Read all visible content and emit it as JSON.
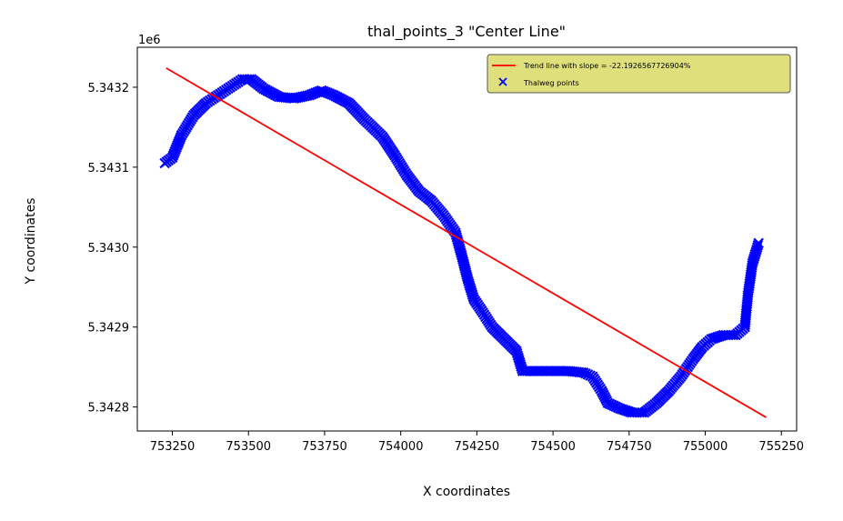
{
  "chart_data": {
    "type": "scatter",
    "title": "thal_points_3 \"Center Line\"",
    "xlabel": "X coordinates",
    "ylabel": "Y coordinates",
    "y_offset_label": "1e6",
    "xlim": [
      753135,
      755300
    ],
    "ylim": [
      5342770,
      5343250
    ],
    "x_ticks": [
      753250,
      753500,
      753750,
      754000,
      754250,
      754500,
      754750,
      755000,
      755250
    ],
    "x_tick_labels": [
      "753250",
      "753500",
      "753750",
      "754000",
      "754250",
      "754500",
      "754750",
      "755000",
      "755250"
    ],
    "y_ticks": [
      5342800,
      5342900,
      5343000,
      5343100,
      5343200
    ],
    "y_tick_labels": [
      "5.3428",
      "5.3429",
      "5.3430",
      "5.3431",
      "5.3432"
    ],
    "grid": false,
    "legend_position": "upper right",
    "legend_bg": "#dfdf7c",
    "series": [
      {
        "name": "Trend line with slope = -22.1926567726904%",
        "kind": "line",
        "color": "#ff0000",
        "points": [
          [
            753230,
            5343224
          ],
          [
            755200,
            5342787
          ]
        ]
      },
      {
        "name": "Thalweg points",
        "kind": "scatter",
        "marker": "x",
        "color": "#0000ff",
        "points": [
          [
            753225,
            5343105
          ],
          [
            753250,
            5343112
          ],
          [
            753280,
            5343140
          ],
          [
            753320,
            5343165
          ],
          [
            753360,
            5343180
          ],
          [
            753400,
            5343190
          ],
          [
            753440,
            5343200
          ],
          [
            753480,
            5343210
          ],
          [
            753510,
            5343210
          ],
          [
            753550,
            5343198
          ],
          [
            753600,
            5343188
          ],
          [
            753650,
            5343186
          ],
          [
            753700,
            5343190
          ],
          [
            753740,
            5343196
          ],
          [
            753780,
            5343190
          ],
          [
            753830,
            5343180
          ],
          [
            753880,
            5343160
          ],
          [
            753940,
            5343138
          ],
          [
            753980,
            5343115
          ],
          [
            754020,
            5343090
          ],
          [
            754060,
            5343070
          ],
          [
            754100,
            5343058
          ],
          [
            754140,
            5343040
          ],
          [
            754180,
            5343018
          ],
          [
            754200,
            5342990
          ],
          [
            754220,
            5342960
          ],
          [
            754240,
            5342935
          ],
          [
            754270,
            5342918
          ],
          [
            754300,
            5342900
          ],
          [
            754340,
            5342885
          ],
          [
            754380,
            5342870
          ],
          [
            754400,
            5342845
          ],
          [
            754450,
            5342845
          ],
          [
            754500,
            5342845
          ],
          [
            754550,
            5342845
          ],
          [
            754600,
            5342843
          ],
          [
            754630,
            5342838
          ],
          [
            754660,
            5342820
          ],
          [
            754680,
            5342805
          ],
          [
            754720,
            5342798
          ],
          [
            754760,
            5342793
          ],
          [
            754800,
            5342793
          ],
          [
            754840,
            5342805
          ],
          [
            754880,
            5342820
          ],
          [
            754920,
            5342838
          ],
          [
            754960,
            5342860
          ],
          [
            754990,
            5342875
          ],
          [
            755020,
            5342885
          ],
          [
            755060,
            5342890
          ],
          [
            755100,
            5342890
          ],
          [
            755130,
            5342900
          ],
          [
            755140,
            5342940
          ],
          [
            755155,
            5342980
          ],
          [
            755175,
            5343005
          ]
        ]
      }
    ]
  }
}
